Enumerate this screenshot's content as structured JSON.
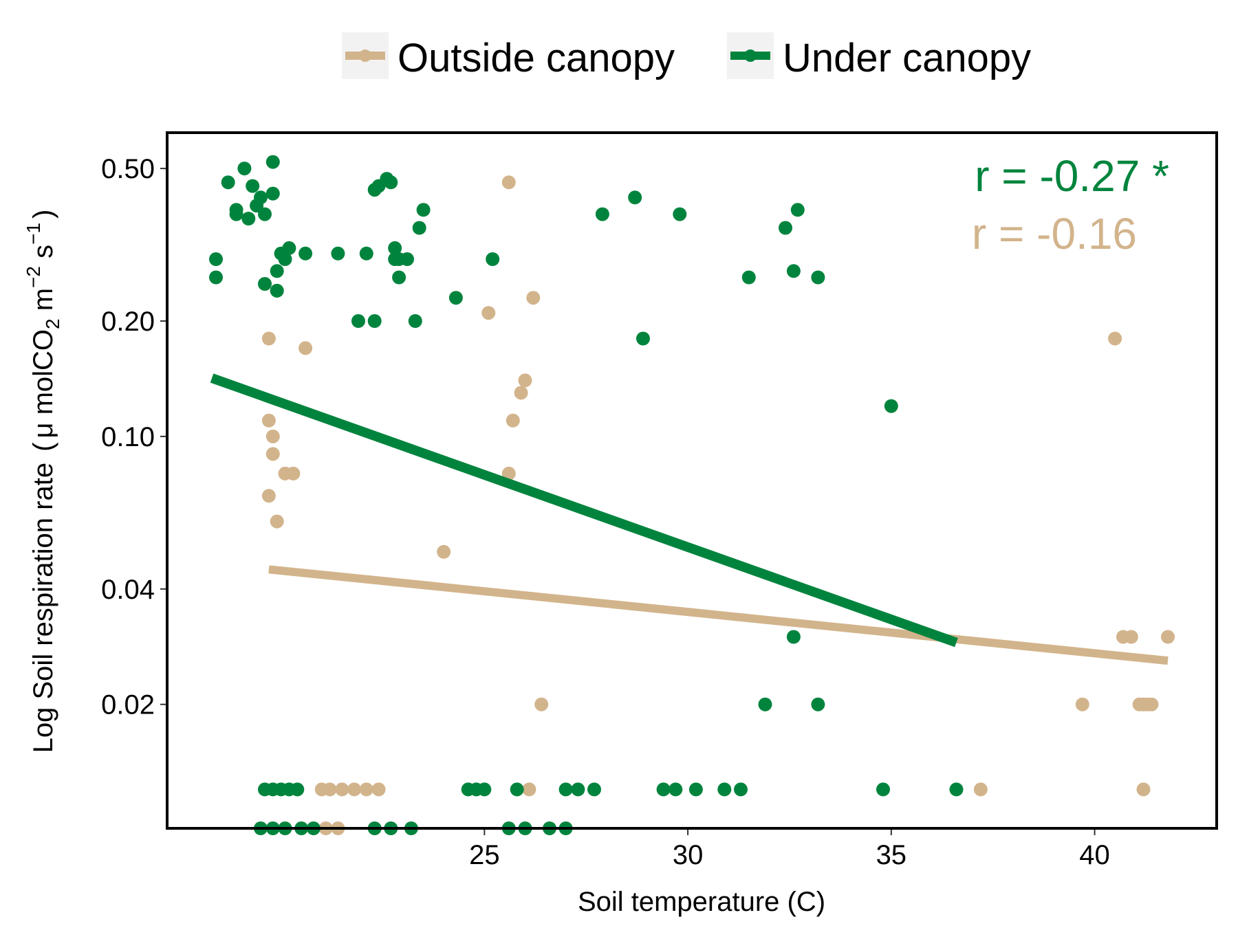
{
  "chart_data": {
    "type": "scatter",
    "title": "",
    "xlabel": "Soil temperature (C)",
    "ylabel": {
      "main": "Log Soil respiration rate",
      "unit_open": "(",
      "mu": "μ",
      "unit_mol": " molCO",
      "sub2": "2",
      "unit_m": " m",
      "sup_m": "−2",
      "unit_s": " s",
      "sup_s": "−1",
      "unit_close": ")"
    },
    "y_scale": "log",
    "xlim": [
      17.2,
      43.0
    ],
    "ylim": [
      0.0095,
      0.62
    ],
    "x_ticks": [
      {
        "value": 25,
        "label": "25"
      },
      {
        "value": 30,
        "label": "30"
      },
      {
        "value": 35,
        "label": "35"
      },
      {
        "value": 40,
        "label": "40"
      }
    ],
    "y_ticks": [
      {
        "value": 0.02,
        "label": "0.02"
      },
      {
        "value": 0.04,
        "label": "0.04"
      },
      {
        "value": 0.1,
        "label": "0.10"
      },
      {
        "value": 0.2,
        "label": "0.20"
      },
      {
        "value": 0.5,
        "label": "0.50"
      }
    ],
    "grid": false,
    "legend_position": "top",
    "legend": [
      {
        "label": "Outside canopy",
        "color": "#d2b48c"
      },
      {
        "label": "Under canopy",
        "color": "#00843d"
      }
    ],
    "annotations": [
      {
        "text": "r = -0.27 *",
        "color": "#00843d"
      },
      {
        "text": "r = -0.16",
        "color": "#d2b48c"
      }
    ],
    "series": [
      {
        "name": "Outside canopy",
        "color": "#d2b48c",
        "points": [
          [
            19.7,
            0.18
          ],
          [
            19.7,
            0.11
          ],
          [
            19.8,
            0.1
          ],
          [
            19.8,
            0.09
          ],
          [
            19.7,
            0.07
          ],
          [
            19.9,
            0.06
          ],
          [
            19.9,
            0.24
          ],
          [
            20.1,
            0.08
          ],
          [
            20.3,
            0.08
          ],
          [
            20.6,
            0.17
          ],
          [
            25.6,
            0.46
          ],
          [
            25.1,
            0.21
          ],
          [
            26.2,
            0.23
          ],
          [
            26.0,
            0.14
          ],
          [
            25.9,
            0.13
          ],
          [
            25.7,
            0.11
          ],
          [
            25.6,
            0.08
          ],
          [
            24.0,
            0.05
          ],
          [
            26.4,
            0.02
          ],
          [
            21.0,
            0.012
          ],
          [
            21.2,
            0.012
          ],
          [
            21.5,
            0.012
          ],
          [
            21.8,
            0.012
          ],
          [
            22.1,
            0.012
          ],
          [
            22.4,
            0.012
          ],
          [
            21.1,
            0.0095
          ],
          [
            21.4,
            0.0095
          ],
          [
            26.1,
            0.012
          ],
          [
            37.2,
            0.012
          ],
          [
            40.5,
            0.18
          ],
          [
            40.7,
            0.03
          ],
          [
            40.9,
            0.03
          ],
          [
            41.8,
            0.03
          ],
          [
            39.7,
            0.02
          ],
          [
            41.1,
            0.02
          ],
          [
            41.2,
            0.02
          ],
          [
            41.3,
            0.02
          ],
          [
            41.4,
            0.02
          ],
          [
            41.2,
            0.012
          ]
        ],
        "trend": [
          [
            19.7,
            0.045
          ],
          [
            41.8,
            0.026
          ]
        ]
      },
      {
        "name": "Under canopy",
        "color": "#00843d",
        "points": [
          [
            18.4,
            0.29
          ],
          [
            18.4,
            0.26
          ],
          [
            18.7,
            0.46
          ],
          [
            18.9,
            0.39
          ],
          [
            18.9,
            0.38
          ],
          [
            19.1,
            0.5
          ],
          [
            19.2,
            0.37
          ],
          [
            19.3,
            0.45
          ],
          [
            19.4,
            0.4
          ],
          [
            19.5,
            0.42
          ],
          [
            19.6,
            0.38
          ],
          [
            19.6,
            0.25
          ],
          [
            19.8,
            0.52
          ],
          [
            19.8,
            0.43
          ],
          [
            19.9,
            0.27
          ],
          [
            19.9,
            0.24
          ],
          [
            20.0,
            0.3
          ],
          [
            20.1,
            0.29
          ],
          [
            20.2,
            0.31
          ],
          [
            20.6,
            0.3
          ],
          [
            21.4,
            0.3
          ],
          [
            22.1,
            0.3
          ],
          [
            21.9,
            0.2
          ],
          [
            22.3,
            0.2
          ],
          [
            22.3,
            0.44
          ],
          [
            22.4,
            0.45
          ],
          [
            22.6,
            0.47
          ],
          [
            22.7,
            0.46
          ],
          [
            22.8,
            0.31
          ],
          [
            22.8,
            0.29
          ],
          [
            22.9,
            0.29
          ],
          [
            23.1,
            0.29
          ],
          [
            22.9,
            0.26
          ],
          [
            23.3,
            0.2
          ],
          [
            23.4,
            0.35
          ],
          [
            23.5,
            0.39
          ],
          [
            24.3,
            0.23
          ],
          [
            25.2,
            0.29
          ],
          [
            27.9,
            0.38
          ],
          [
            28.7,
            0.42
          ],
          [
            28.9,
            0.18
          ],
          [
            29.8,
            0.38
          ],
          [
            31.5,
            0.26
          ],
          [
            32.4,
            0.35
          ],
          [
            32.6,
            0.27
          ],
          [
            32.7,
            0.39
          ],
          [
            33.2,
            0.26
          ],
          [
            35.0,
            0.12
          ],
          [
            32.6,
            0.03
          ],
          [
            31.9,
            0.02
          ],
          [
            33.2,
            0.02
          ],
          [
            19.6,
            0.012
          ],
          [
            19.8,
            0.012
          ],
          [
            20.0,
            0.012
          ],
          [
            20.2,
            0.012
          ],
          [
            20.4,
            0.012
          ],
          [
            24.6,
            0.012
          ],
          [
            24.8,
            0.012
          ],
          [
            25.0,
            0.012
          ],
          [
            25.8,
            0.012
          ],
          [
            27.0,
            0.012
          ],
          [
            27.3,
            0.012
          ],
          [
            27.7,
            0.012
          ],
          [
            29.4,
            0.012
          ],
          [
            29.7,
            0.012
          ],
          [
            30.2,
            0.012
          ],
          [
            30.9,
            0.012
          ],
          [
            31.3,
            0.012
          ],
          [
            34.8,
            0.012
          ],
          [
            36.6,
            0.012
          ],
          [
            19.5,
            0.0095
          ],
          [
            19.8,
            0.0095
          ],
          [
            20.1,
            0.0095
          ],
          [
            20.5,
            0.0095
          ],
          [
            20.8,
            0.0095
          ],
          [
            22.3,
            0.0095
          ],
          [
            22.7,
            0.0095
          ],
          [
            23.2,
            0.0095
          ],
          [
            25.6,
            0.0095
          ],
          [
            26.0,
            0.0095
          ],
          [
            26.6,
            0.0095
          ],
          [
            27.0,
            0.0095
          ]
        ],
        "trend": [
          [
            18.3,
            0.142
          ],
          [
            36.6,
            0.029
          ]
        ]
      }
    ]
  }
}
